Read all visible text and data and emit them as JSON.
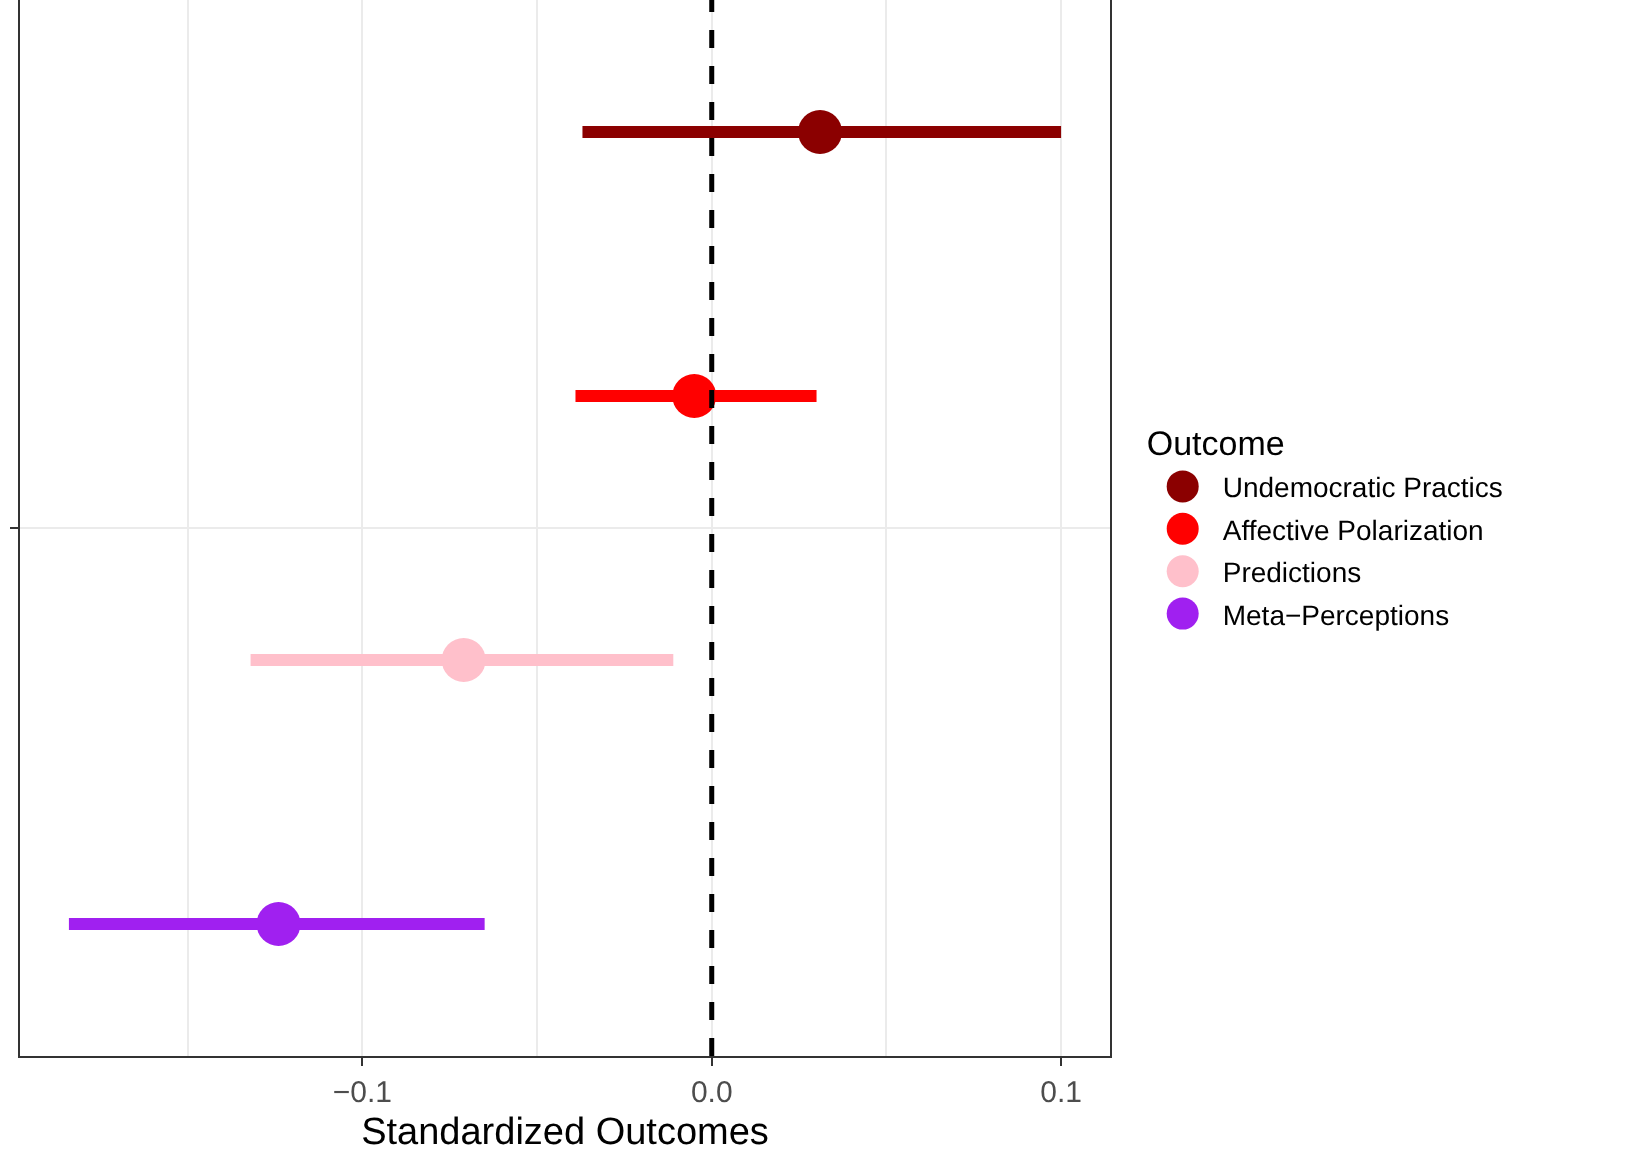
{
  "chart_data": {
    "type": "scatter",
    "orientation": "horizontal",
    "xlabel": "Standardized Outcomes",
    "legend_title": "Outcome",
    "categories": [
      null
    ],
    "series": [
      {
        "name": "Undemocratic Practics",
        "color": "#8b0000",
        "values": [
          0.031
        ],
        "errors": [
          [
            -0.037,
            0.1
          ]
        ]
      },
      {
        "name": "Affective Polarization",
        "color": "#ff0000",
        "values": [
          -0.005
        ],
        "errors": [
          [
            -0.039,
            0.03
          ]
        ]
      },
      {
        "name": "Predictions",
        "color": "#ffc0cb",
        "values": [
          -0.071
        ],
        "errors": [
          [
            -0.132,
            -0.011
          ]
        ]
      },
      {
        "name": "Meta−Perceptions",
        "color": "#a020f0",
        "values": [
          -0.124
        ],
        "errors": [
          [
            -0.184,
            -0.065
          ]
        ]
      }
    ],
    "xlim": [
      -0.198,
      0.114
    ],
    "xticks": [
      {
        "value": -0.15,
        "label": null
      },
      {
        "value": -0.1,
        "label": "−0.1"
      },
      {
        "value": -0.05,
        "label": null
      },
      {
        "value": 0.0,
        "label": "0.0"
      },
      {
        "value": 0.05,
        "label": null
      },
      {
        "value": 0.1,
        "label": "0.1"
      }
    ],
    "ref_lines": [
      {
        "axis": "x",
        "value": 0,
        "color": "#000000",
        "line_style": "dashed"
      }
    ],
    "grid": true,
    "legend": "right",
    "marker": "circle"
  }
}
